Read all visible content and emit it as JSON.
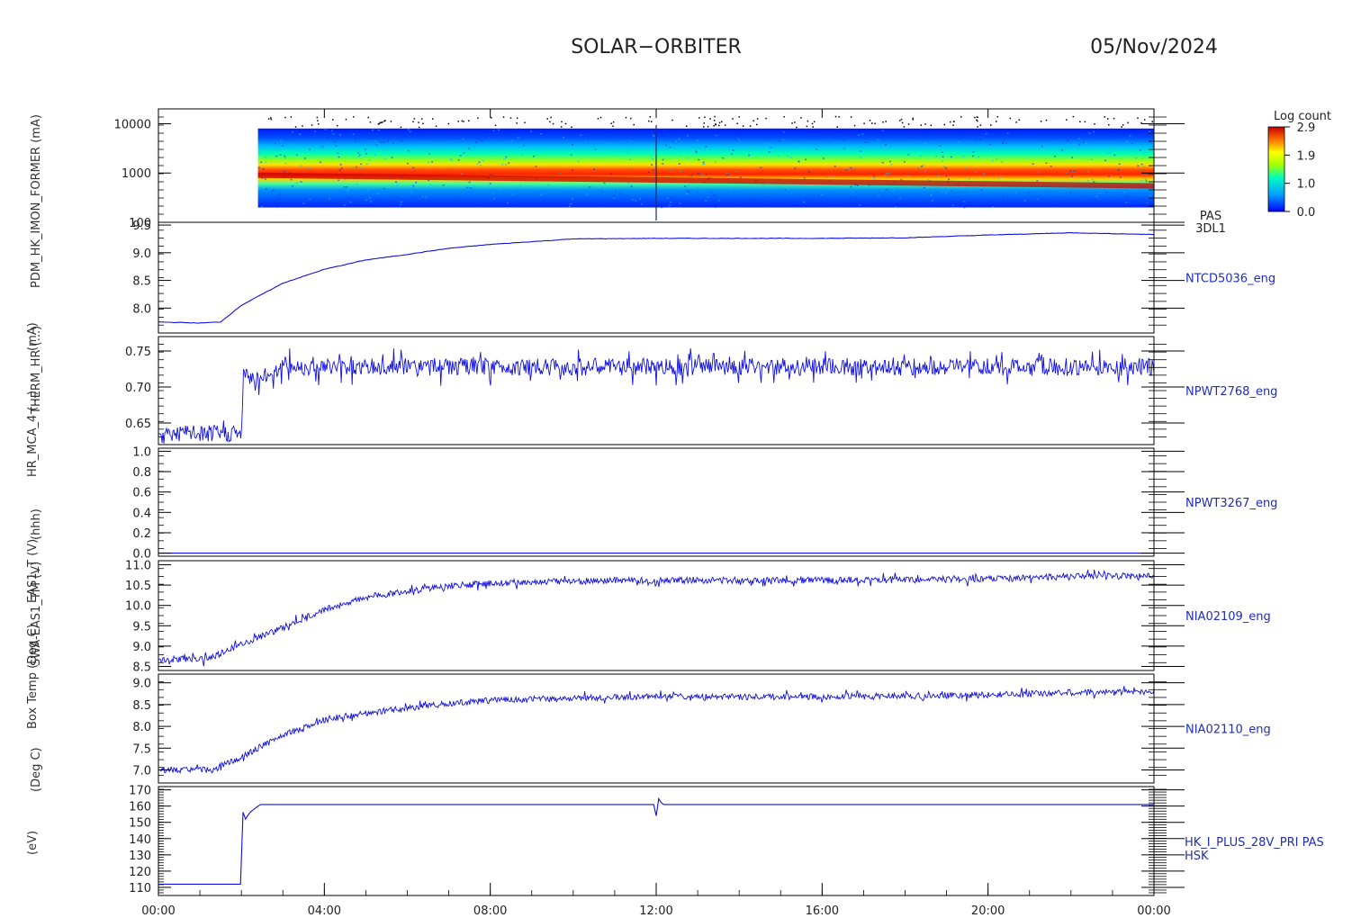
{
  "title": "SOLAR−ORBITER",
  "date": "05/Nov/2024",
  "ylabel_stack": [
    "(eV)",
    "(Deg C)",
    "Box Temp (Deg C)",
    "SWA-EAS1_TM (V)",
    "EAS1_T (V)",
    "(hhh)",
    "HR_MCA_4 (...)",
    "THERM_HR (...)",
    "(mA)",
    "PDM_HK_IMON_FORMER (mA)"
  ],
  "colorbar": {
    "title": "Log count",
    "ticks": [
      "2.9",
      "1.9",
      "1.0",
      "0.0"
    ]
  },
  "x_axis": {
    "ticks": [
      "00:00",
      "04:00",
      "08:00",
      "12:00",
      "16:00",
      "20:00",
      "00:00"
    ]
  },
  "chart_data": [
    {
      "type": "heatmap",
      "panel": "spectrogram",
      "right_label_lines": [
        "PAS",
        "3DL1"
      ],
      "y_scale": "log",
      "ylim": [
        100,
        20000
      ],
      "y_ticks": [
        "10000",
        "1000",
        "100"
      ],
      "x_hours": [
        2.4,
        24
      ],
      "energy_band": {
        "low_eV": 200,
        "high_eV": 8000
      },
      "peak_energy_eV": [
        {
          "hour": 2.4,
          "eV": 900
        },
        {
          "hour": 24,
          "eV": 550
        }
      ]
    },
    {
      "type": "line",
      "panel": "NTCD5036",
      "right_label": "NTCD5036_eng",
      "ylim": [
        7.55,
        9.55
      ],
      "y_ticks": [
        "9.5",
        "9.0",
        "8.5",
        "8.0"
      ],
      "x_hours": [
        0,
        1,
        1.5,
        2,
        3,
        4,
        5,
        6,
        7,
        8,
        9,
        10,
        12,
        14,
        16,
        18,
        20,
        22,
        24
      ],
      "values": [
        7.75,
        7.73,
        7.75,
        8.05,
        8.45,
        8.7,
        8.87,
        8.97,
        9.08,
        9.15,
        9.2,
        9.25,
        9.26,
        9.26,
        9.26,
        9.27,
        9.32,
        9.36,
        9.33
      ]
    },
    {
      "type": "line",
      "panel": "NPWT2768",
      "right_label": "NPWT2768_eng",
      "ylim": [
        0.62,
        0.77
      ],
      "y_ticks": [
        "0.75",
        "0.70",
        "0.65"
      ],
      "x_hours": [
        0,
        2.0,
        2.05,
        2.5,
        3.0,
        24
      ],
      "values": [
        0.635,
        0.635,
        0.715,
        0.712,
        0.728,
        0.728
      ],
      "noise_amplitude": 0.012
    },
    {
      "type": "line",
      "panel": "NPWT3267",
      "right_label": "NPWT3267_eng",
      "ylim": [
        -0.03,
        1.03
      ],
      "y_ticks": [
        "1.0",
        "0.8",
        "0.6",
        "0.4",
        "0.2",
        "0.0"
      ],
      "x_hours": [
        0,
        24
      ],
      "values": [
        0.0,
        0.0
      ]
    },
    {
      "type": "line",
      "panel": "NIA02109",
      "right_label": "NIA02109_eng",
      "ylim": [
        8.4,
        11.1
      ],
      "y_ticks": [
        "11.0",
        "10.5",
        "10.0",
        "9.5",
        "9.0",
        "8.5"
      ],
      "x_hours": [
        0,
        1.2,
        2,
        3,
        4,
        5,
        6,
        7,
        8,
        10,
        12,
        14,
        16,
        18,
        20,
        22,
        24
      ],
      "values": [
        8.68,
        8.68,
        9.05,
        9.45,
        9.9,
        10.2,
        10.35,
        10.47,
        10.55,
        10.6,
        10.62,
        10.62,
        10.62,
        10.63,
        10.65,
        10.72,
        10.72
      ],
      "noise_amplitude": 0.08
    },
    {
      "type": "line",
      "panel": "NIA02110",
      "right_label": "NIA02110_eng",
      "ylim": [
        6.7,
        9.2
      ],
      "y_ticks": [
        "9.0",
        "8.5",
        "8.0",
        "7.5",
        "7.0"
      ],
      "x_hours": [
        0,
        1.3,
        2,
        3,
        4,
        5,
        6,
        7,
        8,
        10,
        12,
        14,
        16,
        18,
        20,
        22,
        24
      ],
      "values": [
        7.0,
        7.0,
        7.3,
        7.8,
        8.15,
        8.3,
        8.42,
        8.52,
        8.6,
        8.65,
        8.68,
        8.68,
        8.68,
        8.7,
        8.72,
        8.78,
        8.8
      ],
      "noise_amplitude": 0.07
    },
    {
      "type": "line",
      "panel": "HK_I_PLUS_28V_PRI",
      "right_label_lines": [
        "HK_I_PLUS_28V_PRI PAS",
        "HSK"
      ],
      "ylim": [
        105,
        172
      ],
      "y_ticks": [
        "170",
        "160",
        "150",
        "140",
        "130",
        "120",
        "110"
      ],
      "x_hours": [
        0,
        2.0,
        2.03,
        2.1,
        2.2,
        2.3,
        2.45,
        11.95,
        12.0,
        12.05,
        12.15,
        24
      ],
      "values": [
        112,
        112,
        157,
        152,
        156,
        158,
        161,
        161,
        154,
        165,
        161,
        161
      ]
    }
  ]
}
